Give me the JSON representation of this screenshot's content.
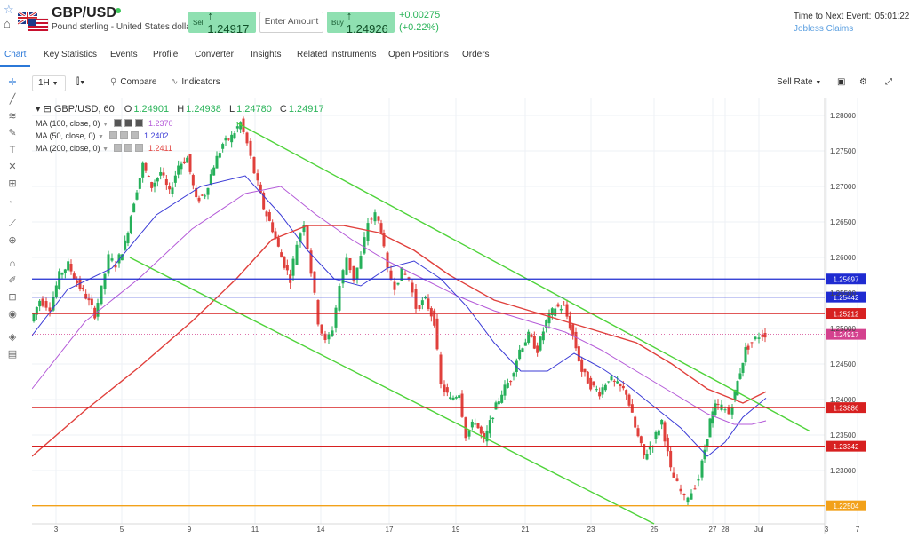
{
  "header": {
    "symbol": "GBP/USD",
    "instrument_name": "Pound sterling - United States dollar",
    "sell_label": "Sell",
    "sell_price": "1.24917",
    "amount_placeholder": "Enter Amount",
    "buy_label": "Buy",
    "buy_price": "1.24926",
    "change_abs": "+0.00275",
    "change_pct": "(+0.22%)",
    "next_event_label": "Time to Next Event:",
    "next_event_time": "05:01:22",
    "next_event_name": "Jobless Claims",
    "arrow": "↑"
  },
  "tabs": [
    "Chart",
    "Key Statistics",
    "Events",
    "Profile",
    "Converter",
    "Insights",
    "Related Instruments",
    "Open Positions",
    "Orders"
  ],
  "toolbar": {
    "interval": "1H",
    "compare_label": "Compare",
    "indicators_label": "Indicators",
    "rate_select": "Sell Rate"
  },
  "legend": {
    "title": "GBP/USD, 60",
    "o_label": "O",
    "o": "1.24901",
    "h_label": "H",
    "h": "1.24938",
    "l_label": "L",
    "l": "1.24780",
    "c_label": "C",
    "c": "1.24917",
    "ma100_label": "MA (100, close, 0)",
    "ma100": "1.2370",
    "ma50_label": "MA (50, close, 0)",
    "ma50": "1.2402",
    "ma200_label": "MA (200, close, 0)",
    "ma200": "1.2411"
  },
  "colors": {
    "bull": "#26b05a",
    "bear": "#e0403c",
    "ma50": "#3b3bd6",
    "ma100": "#b45ad8",
    "ma200": "#e0403c",
    "channel": "#4fd33a",
    "level_blue": "#1f2bd1",
    "level_red": "#d72020",
    "level_orange": "#f2a11a",
    "last_price_tag": "#d4418e"
  },
  "chart_data": {
    "type": "candlestick",
    "ylim": [
      1.2225,
      1.2825
    ],
    "y_ticks": [
      "1.28000",
      "1.27500",
      "1.27000",
      "1.26500",
      "1.26000",
      "1.25500",
      "1.25000",
      "1.24500",
      "1.24000",
      "1.23500",
      "1.23000"
    ],
    "x_ticks": [
      "3",
      "5",
      "9",
      "11",
      "14",
      "17",
      "19",
      "21",
      "23",
      "25",
      "27",
      "28",
      "Jul",
      "3",
      "7"
    ],
    "last_price": "1.24917",
    "levels": [
      {
        "value": "1.25697",
        "color": "blue"
      },
      {
        "value": "1.25442",
        "color": "blue"
      },
      {
        "value": "1.25212",
        "color": "red"
      },
      {
        "value": "1.23886",
        "color": "red"
      },
      {
        "value": "1.23342",
        "color": "red"
      },
      {
        "value": "1.22504",
        "color": "orange"
      }
    ],
    "price_path": [
      [
        0,
        1.251
      ],
      [
        10,
        1.254
      ],
      [
        22,
        1.253
      ],
      [
        32,
        1.2575
      ],
      [
        42,
        1.259
      ],
      [
        52,
        1.2565
      ],
      [
        62,
        1.2545
      ],
      [
        72,
        1.252
      ],
      [
        80,
        1.2555
      ],
      [
        88,
        1.26
      ],
      [
        96,
        1.259
      ],
      [
        106,
        1.262
      ],
      [
        116,
        1.268
      ],
      [
        126,
        1.273
      ],
      [
        136,
        1.27
      ],
      [
        146,
        1.272
      ],
      [
        156,
        1.269
      ],
      [
        166,
        1.273
      ],
      [
        176,
        1.274
      ],
      [
        186,
        1.268
      ],
      [
        196,
        1.269
      ],
      [
        206,
        1.273
      ],
      [
        216,
        1.276
      ],
      [
        226,
        1.277
      ],
      [
        236,
        1.279
      ],
      [
        244,
        1.276
      ],
      [
        252,
        1.272
      ],
      [
        262,
        1.267
      ],
      [
        272,
        1.264
      ],
      [
        282,
        1.26
      ],
      [
        292,
        1.257
      ],
      [
        300,
        1.262
      ],
      [
        308,
        1.265
      ],
      [
        316,
        1.258
      ],
      [
        324,
        1.251
      ],
      [
        332,
        1.248
      ],
      [
        340,
        1.25
      ],
      [
        348,
        1.256
      ],
      [
        356,
        1.26
      ],
      [
        364,
        1.257
      ],
      [
        372,
        1.26
      ],
      [
        380,
        1.265
      ],
      [
        388,
        1.266
      ],
      [
        394,
        1.264
      ],
      [
        402,
        1.258
      ],
      [
        410,
        1.256
      ],
      [
        418,
        1.258
      ],
      [
        426,
        1.257
      ],
      [
        434,
        1.253
      ],
      [
        444,
        1.254
      ],
      [
        454,
        1.251
      ],
      [
        462,
        1.242
      ],
      [
        472,
        1.24
      ],
      [
        482,
        1.241
      ],
      [
        490,
        1.235
      ],
      [
        500,
        1.237
      ],
      [
        510,
        1.234
      ],
      [
        520,
        1.238
      ],
      [
        530,
        1.241
      ],
      [
        540,
        1.243
      ],
      [
        550,
        1.247
      ],
      [
        560,
        1.249
      ],
      [
        570,
        1.247
      ],
      [
        580,
        1.251
      ],
      [
        590,
        1.253
      ],
      [
        600,
        1.253
      ],
      [
        610,
        1.249
      ],
      [
        620,
        1.244
      ],
      [
        630,
        1.242
      ],
      [
        640,
        1.241
      ],
      [
        650,
        1.243
      ],
      [
        660,
        1.242
      ],
      [
        670,
        1.241
      ],
      [
        680,
        1.236
      ],
      [
        690,
        1.232
      ],
      [
        700,
        1.234
      ],
      [
        710,
        1.237
      ],
      [
        720,
        1.23
      ],
      [
        728,
        1.228
      ],
      [
        736,
        1.226
      ],
      [
        744,
        1.227
      ],
      [
        752,
        1.229
      ],
      [
        758,
        1.233
      ],
      [
        764,
        1.237
      ],
      [
        770,
        1.239
      ],
      [
        778,
        1.239
      ],
      [
        786,
        1.238
      ],
      [
        792,
        1.241
      ],
      [
        798,
        1.244
      ],
      [
        804,
        1.247
      ],
      [
        812,
        1.248
      ],
      [
        820,
        1.249
      ],
      [
        826,
        1.2492
      ]
    ],
    "ma50_path": [
      [
        0,
        1.249
      ],
      [
        40,
        1.2555
      ],
      [
        90,
        1.2585
      ],
      [
        140,
        1.266
      ],
      [
        190,
        1.27
      ],
      [
        240,
        1.2715
      ],
      [
        280,
        1.266
      ],
      [
        310,
        1.261
      ],
      [
        340,
        1.257
      ],
      [
        370,
        1.256
      ],
      [
        400,
        1.2585
      ],
      [
        430,
        1.2595
      ],
      [
        460,
        1.257
      ],
      [
        490,
        1.253
      ],
      [
        520,
        1.248
      ],
      [
        550,
        1.244
      ],
      [
        580,
        1.244
      ],
      [
        610,
        1.2465
      ],
      [
        640,
        1.2445
      ],
      [
        670,
        1.242
      ],
      [
        700,
        1.239
      ],
      [
        730,
        1.236
      ],
      [
        760,
        1.232
      ],
      [
        780,
        1.234
      ],
      [
        800,
        1.2375
      ],
      [
        826,
        1.2402
      ]
    ],
    "ma100_path": [
      [
        0,
        1.2415
      ],
      [
        60,
        1.251
      ],
      [
        120,
        1.257
      ],
      [
        180,
        1.264
      ],
      [
        240,
        1.269
      ],
      [
        280,
        1.27
      ],
      [
        320,
        1.266
      ],
      [
        360,
        1.2625
      ],
      [
        400,
        1.2595
      ],
      [
        440,
        1.257
      ],
      [
        480,
        1.2545
      ],
      [
        520,
        1.2525
      ],
      [
        560,
        1.251
      ],
      [
        600,
        1.2495
      ],
      [
        640,
        1.247
      ],
      [
        680,
        1.244
      ],
      [
        720,
        1.241
      ],
      [
        760,
        1.238
      ],
      [
        790,
        1.2365
      ],
      [
        810,
        1.2365
      ],
      [
        826,
        1.237
      ]
    ],
    "ma200_path": [
      [
        0,
        1.232
      ],
      [
        60,
        1.2385
      ],
      [
        120,
        1.2445
      ],
      [
        180,
        1.251
      ],
      [
        230,
        1.257
      ],
      [
        270,
        1.2625
      ],
      [
        310,
        1.2645
      ],
      [
        350,
        1.2645
      ],
      [
        390,
        1.2635
      ],
      [
        430,
        1.261
      ],
      [
        470,
        1.2575
      ],
      [
        520,
        1.254
      ],
      [
        560,
        1.2525
      ],
      [
        600,
        1.251
      ],
      [
        640,
        1.2495
      ],
      [
        680,
        1.248
      ],
      [
        720,
        1.245
      ],
      [
        760,
        1.2415
      ],
      [
        800,
        1.2395
      ],
      [
        826,
        1.2411
      ]
    ],
    "channel_upper": [
      [
        230,
        1.279
      ],
      [
        876,
        1.2355
      ]
    ],
    "channel_lower": [
      [
        110,
        1.26
      ],
      [
        700,
        1.2225
      ]
    ]
  }
}
